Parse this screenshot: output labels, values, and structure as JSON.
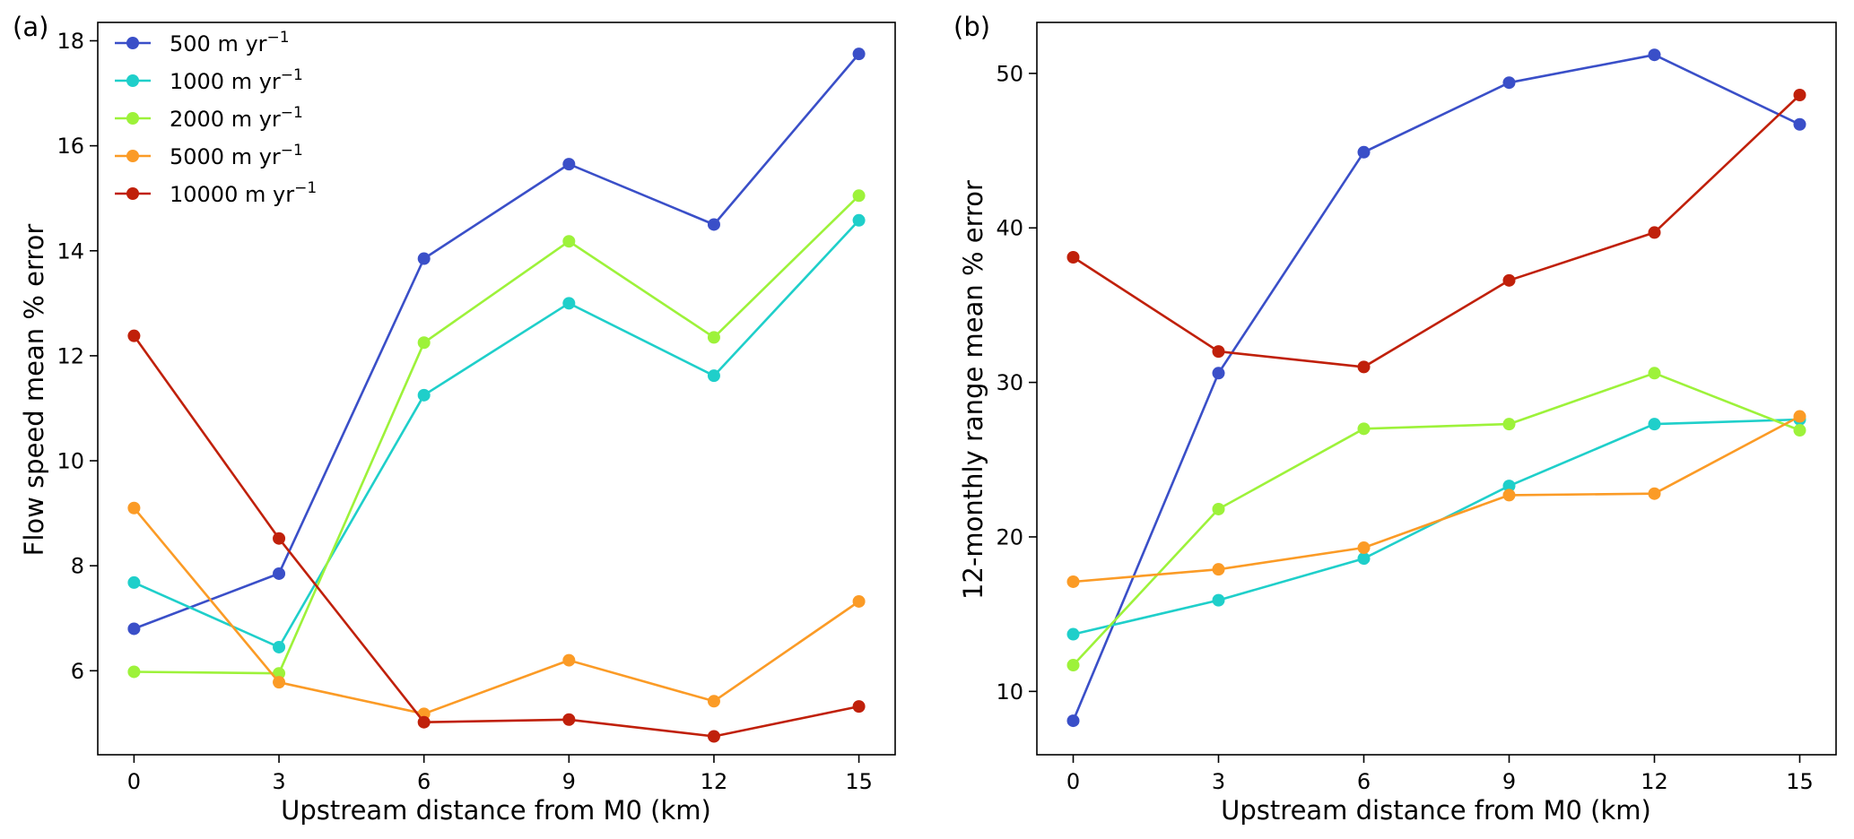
{
  "chart_data": [
    {
      "type": "line",
      "panel_label": "(a)",
      "title": "",
      "xlabel": "Upstream distance from M0 (km)",
      "ylabel": "Flow speed mean % error",
      "x": [
        0,
        3,
        6,
        9,
        12,
        15
      ],
      "xticks": [
        "0",
        "3",
        "6",
        "9",
        "12",
        "15"
      ],
      "xlim": [
        -0.75,
        15.75
      ],
      "yticks": [
        "6",
        "8",
        "10",
        "12",
        "14",
        "16",
        "18"
      ],
      "ytick_values": [
        6,
        8,
        10,
        12,
        14,
        16,
        18
      ],
      "ylim": [
        4.4,
        18.35
      ],
      "legend_position": "top-left",
      "series": [
        {
          "name": "500",
          "unit_base": " m yr",
          "unit_exp": "−1",
          "color": "#3a4fc8",
          "values": [
            6.8,
            7.85,
            13.85,
            15.65,
            14.5,
            17.75
          ]
        },
        {
          "name": "1000",
          "unit_base": " m yr",
          "unit_exp": "−1",
          "color": "#1fcfca",
          "values": [
            7.68,
            6.45,
            11.25,
            13.0,
            11.62,
            14.58
          ]
        },
        {
          "name": "2000",
          "unit_base": " m yr",
          "unit_exp": "−1",
          "color": "#9df23a",
          "values": [
            5.98,
            5.95,
            12.25,
            14.18,
            12.35,
            15.05
          ]
        },
        {
          "name": "5000",
          "unit_base": " m yr",
          "unit_exp": "−1",
          "color": "#fb9b26",
          "values": [
            9.1,
            5.78,
            5.18,
            6.2,
            5.42,
            7.32
          ]
        },
        {
          "name": "10000",
          "unit_base": " m yr",
          "unit_exp": "−1",
          "color": "#c0200a",
          "values": [
            12.38,
            8.52,
            5.02,
            5.07,
            4.75,
            5.32
          ]
        }
      ]
    },
    {
      "type": "line",
      "panel_label": "(b)",
      "title": "",
      "xlabel": "Upstream distance from M0 (km)",
      "ylabel": "12-monthly range mean % error",
      "x": [
        0,
        3,
        6,
        9,
        12,
        15
      ],
      "xticks": [
        "0",
        "3",
        "6",
        "9",
        "12",
        "15"
      ],
      "xlim": [
        -0.75,
        15.75
      ],
      "yticks": [
        "10",
        "20",
        "30",
        "40",
        "50"
      ],
      "ytick_values": [
        10,
        20,
        30,
        40,
        50
      ],
      "ylim": [
        5.9,
        53.3
      ],
      "series": [
        {
          "name": "500",
          "color": "#3a4fc8",
          "values": [
            8.1,
            30.6,
            44.9,
            49.4,
            51.2,
            46.7
          ]
        },
        {
          "name": "1000",
          "color": "#1fcfca",
          "values": [
            13.7,
            15.9,
            18.6,
            23.3,
            27.3,
            27.6
          ]
        },
        {
          "name": "2000",
          "color": "#9df23a",
          "values": [
            11.7,
            21.8,
            27.0,
            27.3,
            30.6,
            26.9
          ]
        },
        {
          "name": "5000",
          "color": "#fb9b26",
          "values": [
            17.1,
            17.9,
            19.3,
            22.7,
            22.8,
            27.8
          ]
        },
        {
          "name": "10000",
          "color": "#c0200a",
          "values": [
            38.1,
            32.0,
            31.0,
            36.6,
            39.7,
            48.6
          ]
        }
      ]
    }
  ]
}
